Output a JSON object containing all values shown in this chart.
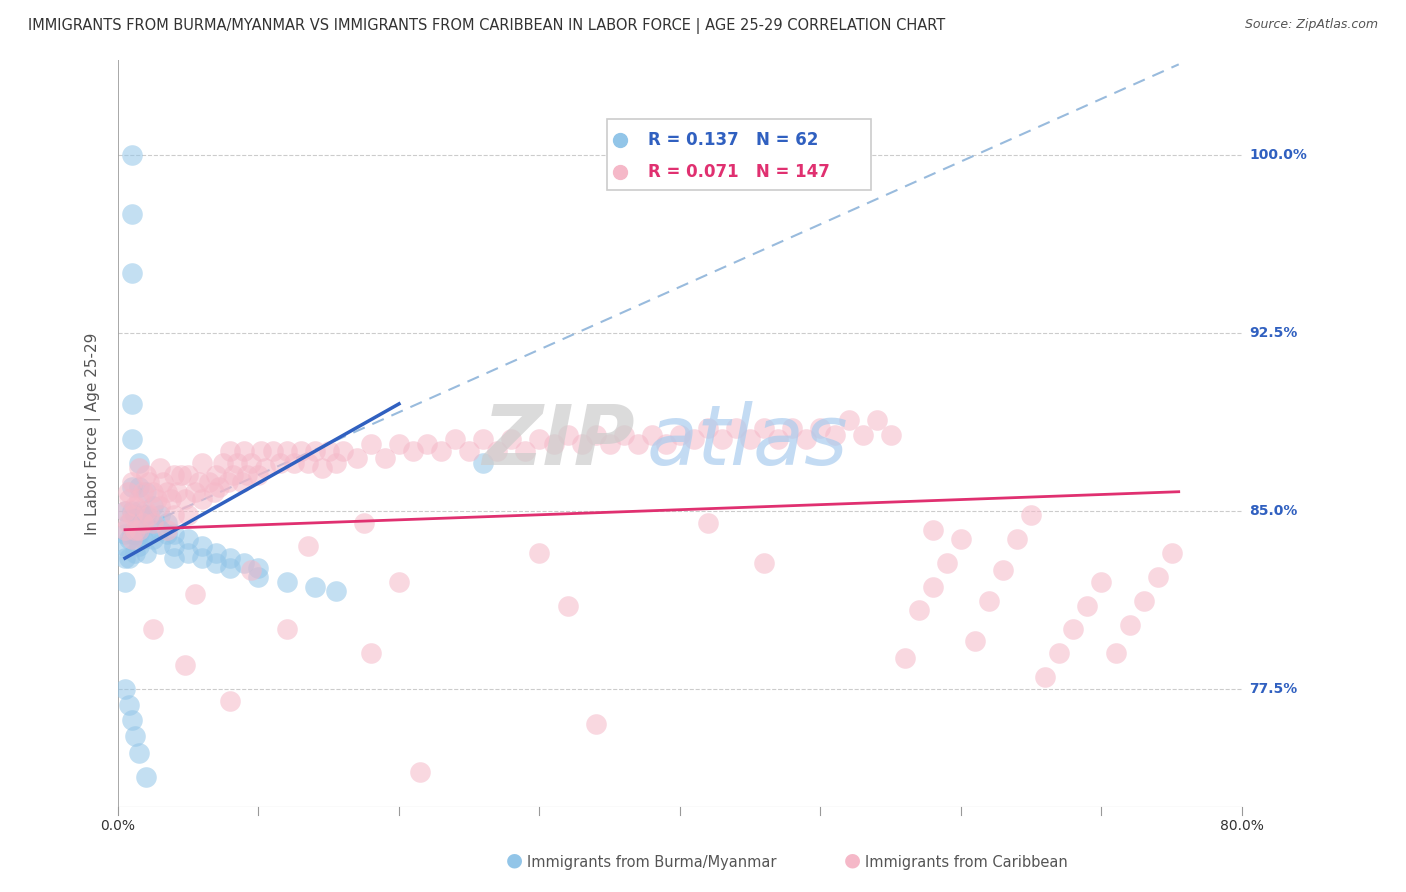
{
  "title": "IMMIGRANTS FROM BURMA/MYANMAR VS IMMIGRANTS FROM CARIBBEAN IN LABOR FORCE | AGE 25-29 CORRELATION CHART",
  "source": "Source: ZipAtlas.com",
  "ylabel": "In Labor Force | Age 25-29",
  "xmin": 0.0,
  "xmax": 0.8,
  "ymin": 0.725,
  "ymax": 1.04,
  "ytick_positions": [
    0.775,
    0.85,
    0.925,
    1.0
  ],
  "ytick_labels": [
    "77.5%",
    "85.0%",
    "92.5%",
    "100.0%"
  ],
  "xtick_positions": [
    0.0,
    0.1,
    0.2,
    0.3,
    0.4,
    0.5,
    0.6,
    0.7,
    0.8
  ],
  "xtick_labels": [
    "0.0%",
    "",
    "",
    "",
    "",
    "",
    "",
    "",
    "80.0%"
  ],
  "blue_R": "0.137",
  "blue_N": "62",
  "pink_R": "0.071",
  "pink_N": "147",
  "blue_color": "#92C5E8",
  "pink_color": "#F5B8C8",
  "blue_line_color": "#3060C0",
  "pink_line_color": "#E03070",
  "diagonal_line_color": "#99BBDD",
  "watermark_zip": "ZIP",
  "watermark_atlas": "atlas",
  "legend_label_blue": "Immigrants from Burma/Myanmar",
  "legend_label_pink": "Immigrants from Caribbean",
  "blue_scatter_x": [
    0.005,
    0.005,
    0.005,
    0.005,
    0.005,
    0.008,
    0.008,
    0.008,
    0.01,
    0.01,
    0.01,
    0.01,
    0.01,
    0.01,
    0.01,
    0.01,
    0.012,
    0.012,
    0.012,
    0.015,
    0.015,
    0.015,
    0.015,
    0.015,
    0.018,
    0.018,
    0.02,
    0.02,
    0.02,
    0.02,
    0.025,
    0.025,
    0.025,
    0.03,
    0.03,
    0.03,
    0.035,
    0.035,
    0.04,
    0.04,
    0.04,
    0.05,
    0.05,
    0.06,
    0.06,
    0.07,
    0.07,
    0.08,
    0.08,
    0.09,
    0.1,
    0.1,
    0.12,
    0.14,
    0.155,
    0.26,
    0.005,
    0.008,
    0.01,
    0.012,
    0.015,
    0.02
  ],
  "blue_scatter_y": [
    0.85,
    0.84,
    0.835,
    0.83,
    0.82,
    0.845,
    0.838,
    0.83,
    1.0,
    0.975,
    0.95,
    0.895,
    0.88,
    0.86,
    0.85,
    0.84,
    0.848,
    0.84,
    0.832,
    0.87,
    0.86,
    0.85,
    0.84,
    0.835,
    0.848,
    0.838,
    0.858,
    0.848,
    0.84,
    0.832,
    0.852,
    0.845,
    0.838,
    0.848,
    0.842,
    0.836,
    0.845,
    0.84,
    0.84,
    0.835,
    0.83,
    0.838,
    0.832,
    0.835,
    0.83,
    0.832,
    0.828,
    0.83,
    0.826,
    0.828,
    0.826,
    0.822,
    0.82,
    0.818,
    0.816,
    0.87,
    0.775,
    0.768,
    0.762,
    0.755,
    0.748,
    0.738
  ],
  "pink_scatter_x": [
    0.005,
    0.005,
    0.007,
    0.007,
    0.008,
    0.01,
    0.01,
    0.01,
    0.012,
    0.012,
    0.015,
    0.015,
    0.015,
    0.018,
    0.018,
    0.02,
    0.02,
    0.022,
    0.022,
    0.025,
    0.025,
    0.028,
    0.03,
    0.03,
    0.032,
    0.035,
    0.035,
    0.038,
    0.04,
    0.04,
    0.042,
    0.045,
    0.048,
    0.05,
    0.05,
    0.055,
    0.058,
    0.06,
    0.06,
    0.065,
    0.068,
    0.07,
    0.072,
    0.075,
    0.078,
    0.08,
    0.082,
    0.085,
    0.088,
    0.09,
    0.092,
    0.095,
    0.1,
    0.102,
    0.105,
    0.11,
    0.115,
    0.12,
    0.125,
    0.13,
    0.135,
    0.14,
    0.145,
    0.15,
    0.155,
    0.16,
    0.17,
    0.18,
    0.19,
    0.2,
    0.21,
    0.22,
    0.23,
    0.24,
    0.25,
    0.26,
    0.27,
    0.28,
    0.29,
    0.3,
    0.31,
    0.32,
    0.33,
    0.34,
    0.35,
    0.36,
    0.37,
    0.38,
    0.39,
    0.4,
    0.41,
    0.42,
    0.43,
    0.44,
    0.45,
    0.46,
    0.47,
    0.48,
    0.49,
    0.5,
    0.51,
    0.52,
    0.53,
    0.54,
    0.55,
    0.56,
    0.57,
    0.58,
    0.59,
    0.6,
    0.61,
    0.62,
    0.63,
    0.64,
    0.65,
    0.66,
    0.67,
    0.68,
    0.69,
    0.7,
    0.71,
    0.72,
    0.73,
    0.74,
    0.75,
    0.048,
    0.12,
    0.2,
    0.3,
    0.42,
    0.08,
    0.18,
    0.32,
    0.46,
    0.58,
    0.025,
    0.055,
    0.095,
    0.135,
    0.175,
    0.215,
    0.34
  ],
  "pink_scatter_y": [
    0.85,
    0.842,
    0.858,
    0.845,
    0.855,
    0.862,
    0.848,
    0.838,
    0.852,
    0.842,
    0.868,
    0.855,
    0.842,
    0.858,
    0.845,
    0.865,
    0.85,
    0.862,
    0.848,
    0.858,
    0.845,
    0.855,
    0.868,
    0.852,
    0.862,
    0.858,
    0.842,
    0.855,
    0.865,
    0.848,
    0.858,
    0.865,
    0.855,
    0.865,
    0.848,
    0.858,
    0.862,
    0.87,
    0.855,
    0.862,
    0.858,
    0.865,
    0.86,
    0.87,
    0.862,
    0.875,
    0.865,
    0.87,
    0.862,
    0.875,
    0.865,
    0.87,
    0.865,
    0.875,
    0.868,
    0.875,
    0.87,
    0.875,
    0.87,
    0.875,
    0.87,
    0.875,
    0.868,
    0.875,
    0.87,
    0.875,
    0.872,
    0.878,
    0.872,
    0.878,
    0.875,
    0.878,
    0.875,
    0.88,
    0.875,
    0.88,
    0.875,
    0.88,
    0.875,
    0.88,
    0.878,
    0.882,
    0.878,
    0.882,
    0.878,
    0.882,
    0.878,
    0.882,
    0.878,
    0.882,
    0.88,
    0.885,
    0.88,
    0.885,
    0.88,
    0.885,
    0.88,
    0.885,
    0.88,
    0.885,
    0.882,
    0.888,
    0.882,
    0.888,
    0.882,
    0.788,
    0.808,
    0.818,
    0.828,
    0.838,
    0.795,
    0.812,
    0.825,
    0.838,
    0.848,
    0.78,
    0.79,
    0.8,
    0.81,
    0.82,
    0.79,
    0.802,
    0.812,
    0.822,
    0.832,
    0.785,
    0.8,
    0.82,
    0.832,
    0.845,
    0.77,
    0.79,
    0.81,
    0.828,
    0.842,
    0.8,
    0.815,
    0.825,
    0.835,
    0.845,
    0.74,
    0.76
  ],
  "blue_line_x": [
    0.005,
    0.2
  ],
  "blue_line_y": [
    0.83,
    0.895
  ],
  "pink_line_x": [
    0.005,
    0.755
  ],
  "pink_line_y": [
    0.842,
    0.858
  ],
  "diag_line_x": [
    0.005,
    0.755
  ],
  "diag_line_y": [
    0.84,
    1.038
  ]
}
